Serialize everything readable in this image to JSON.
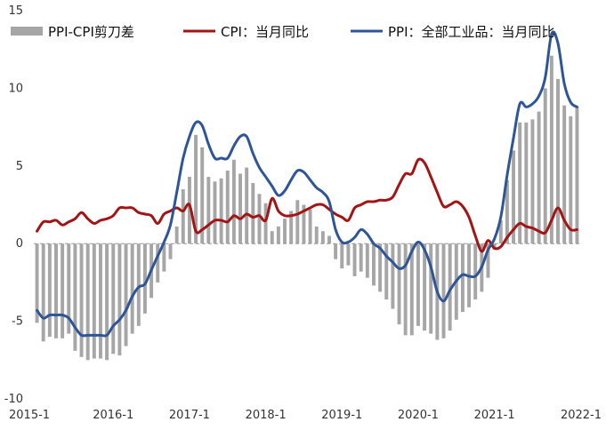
{
  "chart_data": {
    "type": "bar+line",
    "title": "",
    "xlabel": "",
    "ylabel": "",
    "ylim": [
      -10,
      15
    ],
    "y_ticks": [
      -10,
      -5,
      0,
      5,
      10,
      15
    ],
    "x_tick_labels": [
      "2015-1",
      "2016-1",
      "2017-1",
      "2018-1",
      "2019-1",
      "2020-1",
      "2021-1",
      "2022-1"
    ],
    "x_tick_months": [
      "2015-01",
      "2016-01",
      "2017-01",
      "2018-01",
      "2019-01",
      "2020-01",
      "2021-01",
      "2022-01"
    ],
    "x": [
      "2015-01",
      "2015-02",
      "2015-03",
      "2015-04",
      "2015-05",
      "2015-06",
      "2015-07",
      "2015-08",
      "2015-09",
      "2015-10",
      "2015-11",
      "2015-12",
      "2016-01",
      "2016-02",
      "2016-03",
      "2016-04",
      "2016-05",
      "2016-06",
      "2016-07",
      "2016-08",
      "2016-09",
      "2016-10",
      "2016-11",
      "2016-12",
      "2017-01",
      "2017-02",
      "2017-03",
      "2017-04",
      "2017-05",
      "2017-06",
      "2017-07",
      "2017-08",
      "2017-09",
      "2017-10",
      "2017-11",
      "2017-12",
      "2018-01",
      "2018-02",
      "2018-03",
      "2018-04",
      "2018-05",
      "2018-06",
      "2018-07",
      "2018-08",
      "2018-09",
      "2018-10",
      "2018-11",
      "2018-12",
      "2019-01",
      "2019-02",
      "2019-03",
      "2019-04",
      "2019-05",
      "2019-06",
      "2019-07",
      "2019-08",
      "2019-09",
      "2019-10",
      "2019-11",
      "2019-12",
      "2020-01",
      "2020-02",
      "2020-03",
      "2020-04",
      "2020-05",
      "2020-06",
      "2020-07",
      "2020-08",
      "2020-09",
      "2020-10",
      "2020-11",
      "2020-12",
      "2021-01",
      "2021-02",
      "2021-03",
      "2021-04",
      "2021-05",
      "2021-06",
      "2021-07",
      "2021-08",
      "2021-09",
      "2021-10",
      "2021-11",
      "2021-12",
      "2022-01",
      "2022-02"
    ],
    "series": [
      {
        "name": "PPI-CPI剪刀差",
        "type": "bar",
        "values": [
          -5.1,
          -6.3,
          -6.0,
          -6.1,
          -6.1,
          -5.8,
          -6.9,
          -7.3,
          -7.5,
          -7.4,
          -7.4,
          -7.5,
          -7.1,
          -7.2,
          -6.6,
          -5.8,
          -5.3,
          -4.5,
          -3.5,
          -2.5,
          -1.8,
          -1.0,
          1.1,
          3.5,
          4.3,
          7.0,
          6.2,
          4.3,
          4.0,
          4.2,
          4.7,
          5.4,
          4.5,
          4.9,
          3.9,
          3.2,
          2.6,
          0.8,
          1.1,
          1.6,
          2.1,
          2.8,
          2.5,
          2.2,
          1.1,
          0.8,
          0.5,
          -1.0,
          -1.6,
          -1.4,
          -2.1,
          -1.8,
          -2.2,
          -2.7,
          -3.1,
          -3.6,
          -4.2,
          -5.2,
          -5.9,
          -5.9,
          -5.3,
          -5.6,
          -5.8,
          -6.2,
          -6.1,
          -5.6,
          -4.9,
          -4.4,
          -4.1,
          -3.6,
          -3.1,
          -2.2,
          -0.4,
          1.5,
          4.1,
          6.0,
          7.8,
          7.8,
          8.0,
          8.5,
          10.0,
          12.1,
          10.6,
          8.9,
          8.2,
          8.8
        ]
      },
      {
        "name": "CPI：当月同比",
        "type": "line",
        "color": "#a31414",
        "values": [
          0.8,
          1.4,
          1.4,
          1.5,
          1.2,
          1.4,
          1.6,
          2.0,
          1.6,
          1.3,
          1.5,
          1.6,
          1.8,
          2.3,
          2.3,
          2.3,
          2.0,
          1.9,
          1.8,
          1.3,
          1.9,
          2.1,
          2.3,
          2.1,
          2.5,
          0.8,
          0.9,
          1.2,
          1.5,
          1.5,
          1.4,
          1.8,
          1.6,
          1.9,
          1.7,
          1.8,
          1.5,
          2.9,
          2.1,
          1.8,
          1.8,
          1.9,
          2.1,
          2.3,
          2.5,
          2.5,
          2.2,
          1.9,
          1.7,
          1.5,
          2.3,
          2.5,
          2.7,
          2.7,
          2.8,
          2.8,
          3.0,
          3.8,
          4.5,
          4.5,
          5.4,
          5.2,
          4.3,
          3.3,
          2.4,
          2.5,
          2.7,
          2.4,
          1.7,
          0.5,
          -0.5,
          0.2,
          -0.3,
          -0.2,
          0.4,
          0.9,
          1.3,
          1.1,
          1.0,
          0.8,
          0.7,
          1.5,
          2.3,
          1.5,
          0.9,
          0.9
        ]
      },
      {
        "name": "PPI：全部工业品：当月同比",
        "type": "line",
        "color": "#2e5597",
        "values": [
          -4.3,
          -4.8,
          -4.6,
          -4.6,
          -4.6,
          -4.8,
          -5.4,
          -5.9,
          -5.9,
          -5.9,
          -5.9,
          -5.9,
          -5.3,
          -4.9,
          -4.3,
          -3.4,
          -2.8,
          -2.6,
          -1.7,
          -0.8,
          0.1,
          1.2,
          3.3,
          5.5,
          6.9,
          7.8,
          7.6,
          6.4,
          5.5,
          5.5,
          5.5,
          6.3,
          6.9,
          6.9,
          5.8,
          4.9,
          4.3,
          3.7,
          3.1,
          3.4,
          4.1,
          4.7,
          4.6,
          4.1,
          3.6,
          3.3,
          2.7,
          0.9,
          0.1,
          0.1,
          0.4,
          0.9,
          0.6,
          0.0,
          -0.3,
          -0.8,
          -1.2,
          -1.6,
          -1.4,
          -0.5,
          0.1,
          -0.4,
          -1.5,
          -3.1,
          -3.7,
          -3.0,
          -2.4,
          -2.0,
          -2.1,
          -2.1,
          -1.5,
          -0.4,
          0.3,
          1.7,
          4.4,
          6.8,
          9.0,
          8.8,
          9.0,
          9.5,
          10.7,
          13.5,
          12.9,
          10.3,
          9.1,
          8.8
        ]
      }
    ],
    "legend": {
      "placement": "top",
      "entries": [
        "PPI-CPI剪刀差",
        "CPI：当月同比",
        "PPI：全部工业品：当月同比"
      ]
    },
    "bar_color": "#a6a6a6",
    "zero_line": "dashed",
    "grid": false
  }
}
